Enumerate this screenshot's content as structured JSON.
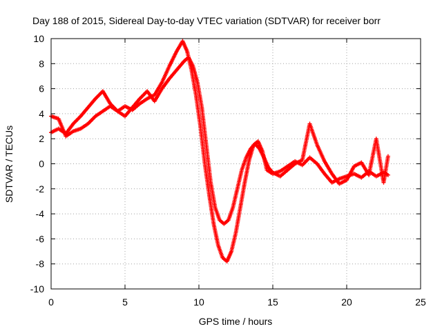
{
  "chart_data": {
    "type": "scatter",
    "title": "Day 188 of 2015, Sidereal Day-to-day VTEC variation (SDTVAR) for receiver borr",
    "xlabel": "GPS time / hours",
    "ylabel": "SDTVAR / TECUs",
    "xlim": [
      0,
      25
    ],
    "ylim": [
      -10,
      10
    ],
    "xticks": [
      "0",
      "5",
      "10",
      "15",
      "20",
      "25"
    ],
    "yticks": [
      "10",
      "8",
      "6",
      "4",
      "2",
      "0",
      "-2",
      "-4",
      "-6",
      "-8",
      "-10"
    ],
    "grid": true,
    "marker": "plus",
    "color": "#ff0000",
    "series": [
      {
        "x": [
          0.0,
          0.5,
          1.0,
          1.5,
          2.0,
          2.5,
          3.0,
          3.5,
          4.0,
          4.5,
          5.0,
          5.5,
          6.0,
          6.5,
          7.0,
          7.5,
          8.0,
          8.5,
          8.9,
          9.2,
          9.5,
          9.8,
          10.1,
          10.4,
          10.7,
          11.0,
          11.3,
          11.6,
          11.9,
          12.2,
          12.5,
          12.8,
          13.1,
          13.4,
          13.7,
          14.0,
          14.3,
          14.6,
          15.0,
          15.5,
          16.0,
          16.5,
          17.0,
          17.5,
          18.0,
          18.5,
          19.0,
          19.5,
          20.0,
          20.5,
          21.0,
          21.5,
          22.0,
          22.5,
          22.8
        ],
        "y": [
          2.5,
          2.8,
          2.4,
          3.2,
          3.8,
          4.5,
          5.2,
          5.8,
          4.8,
          4.2,
          4.6,
          4.3,
          4.8,
          5.2,
          5.5,
          6.5,
          7.8,
          9.0,
          9.8,
          9.0,
          7.5,
          5.5,
          3.0,
          0.0,
          -2.5,
          -4.8,
          -6.5,
          -7.5,
          -7.8,
          -7.0,
          -5.5,
          -3.5,
          -1.5,
          0.3,
          1.5,
          1.8,
          1.0,
          -0.5,
          -0.8,
          -0.6,
          -0.2,
          0.2,
          -0.1,
          0.5,
          0.0,
          -0.8,
          -1.5,
          -1.2,
          -1.0,
          -0.8,
          -1.1,
          -0.6,
          -1.0,
          -0.7,
          -0.9
        ]
      },
      {
        "x": [
          0.0,
          0.5,
          1.0,
          1.5,
          2.0,
          2.5,
          3.0,
          3.5,
          4.0,
          4.5,
          5.0,
          5.5,
          6.0,
          6.5,
          7.0,
          7.5,
          8.0,
          8.5,
          9.0,
          9.3,
          9.6,
          9.9,
          10.2,
          10.5,
          10.8,
          11.1,
          11.4,
          11.7,
          12.0,
          12.3,
          12.6,
          12.9,
          13.2,
          13.5,
          13.8,
          14.1,
          14.4,
          14.7,
          15.0,
          15.5,
          16.0,
          16.5,
          17.0,
          17.5,
          18.0,
          18.5,
          19.0,
          19.5,
          20.0,
          20.5,
          21.0,
          21.5,
          22.0,
          22.5,
          22.8
        ],
        "y": [
          3.8,
          3.6,
          2.2,
          2.6,
          2.8,
          3.2,
          3.8,
          4.2,
          4.6,
          4.2,
          3.8,
          4.5,
          5.2,
          5.8,
          5.0,
          6.0,
          6.8,
          7.5,
          8.2,
          8.5,
          7.8,
          6.5,
          4.5,
          1.5,
          -1.5,
          -3.5,
          -4.5,
          -4.8,
          -4.5,
          -3.5,
          -2.0,
          -0.5,
          0.5,
          1.2,
          1.6,
          1.2,
          0.5,
          -0.3,
          -0.7,
          -1.0,
          -0.5,
          0.0,
          0.3,
          3.2,
          1.5,
          0.2,
          -0.8,
          -1.6,
          -1.3,
          -0.2,
          0.1,
          -0.9,
          2.0,
          -1.5,
          0.6
        ]
      }
    ]
  }
}
